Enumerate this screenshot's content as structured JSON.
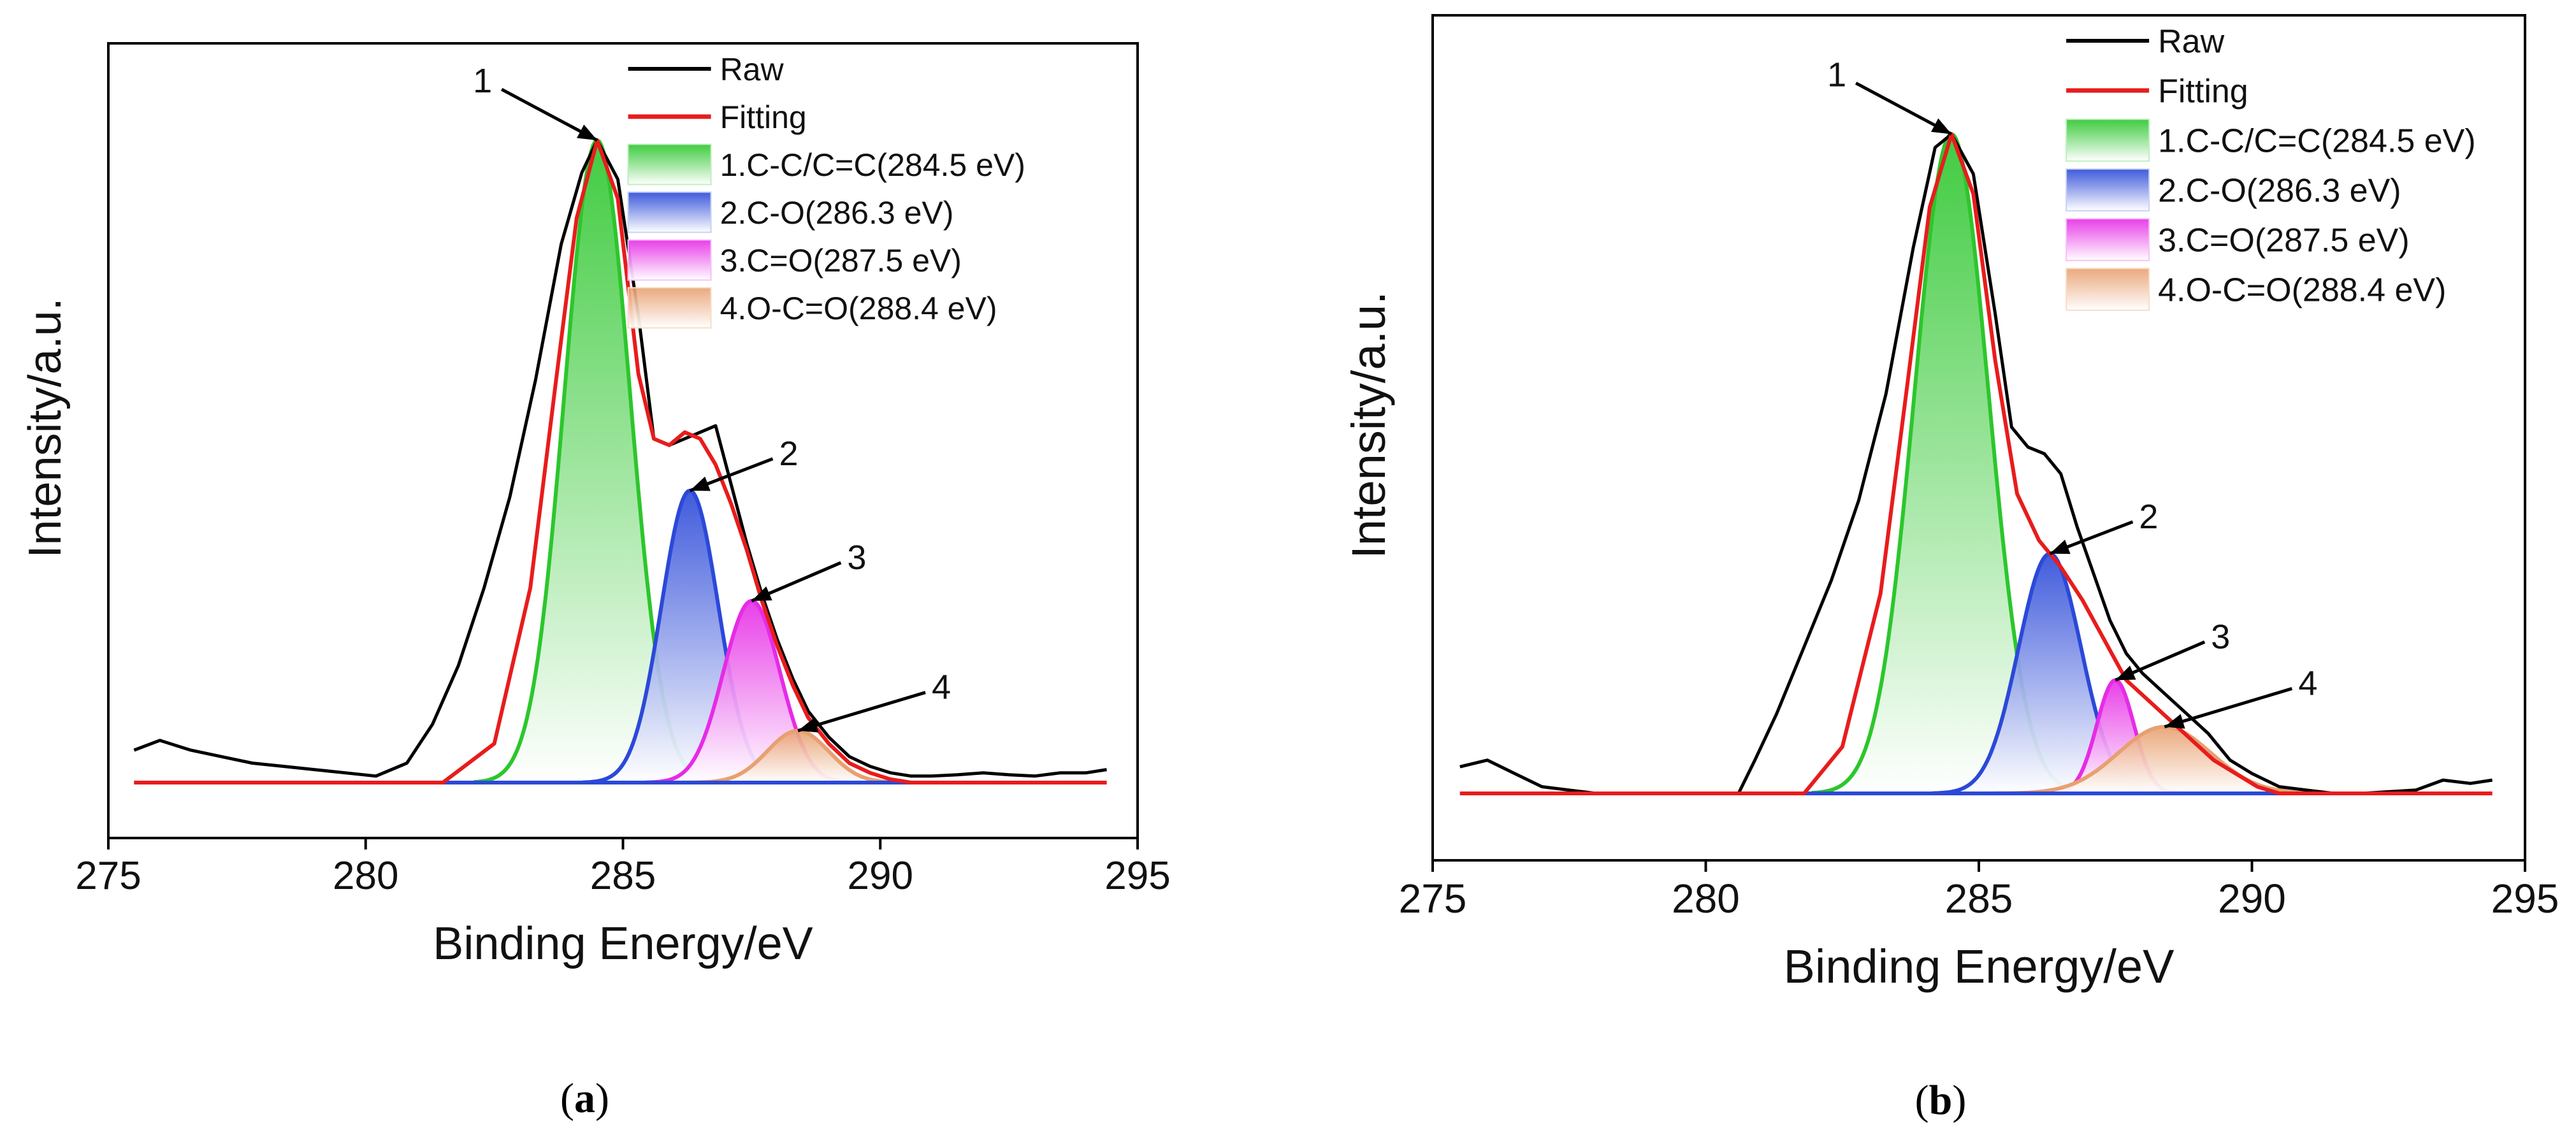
{
  "chart_data": [
    {
      "type": "line",
      "panel_label": "(a)",
      "panel_letter": "a",
      "xlabel": "Binding Energy/eV",
      "ylabel": "Intensity/a.u.",
      "xlim": [
        275,
        295
      ],
      "ylim": [
        0,
        1
      ],
      "xticks": [
        275,
        280,
        285,
        290,
        295
      ],
      "raw": {
        "x": [
          275.5,
          276.0,
          276.6,
          277.2,
          277.8,
          278.4,
          279.0,
          279.6,
          280.2,
          280.8,
          281.3,
          281.8,
          282.3,
          282.8,
          283.3,
          283.8,
          284.2,
          284.5,
          284.9,
          285.3,
          285.6,
          285.9,
          286.2,
          286.5,
          286.8,
          287.1,
          287.4,
          287.7,
          288.0,
          288.3,
          288.6,
          289.0,
          289.4,
          289.8,
          290.2,
          290.6,
          291.0,
          291.5,
          292.0,
          292.5,
          293.0,
          293.5,
          294.0,
          294.4
        ],
        "y": [
          0.05,
          0.065,
          0.05,
          0.04,
          0.03,
          0.025,
          0.02,
          0.015,
          0.01,
          0.03,
          0.09,
          0.18,
          0.3,
          0.44,
          0.62,
          0.83,
          0.94,
          0.99,
          0.93,
          0.72,
          0.53,
          0.52,
          0.53,
          0.54,
          0.55,
          0.46,
          0.37,
          0.29,
          0.22,
          0.16,
          0.11,
          0.07,
          0.04,
          0.025,
          0.015,
          0.01,
          0.01,
          0.012,
          0.015,
          0.012,
          0.01,
          0.015,
          0.015,
          0.02
        ]
      },
      "fitting": {
        "x": [
          275.5,
          279.0,
          281.5,
          282.5,
          283.2,
          283.7,
          284.1,
          284.5,
          284.9,
          285.3,
          285.6,
          285.9,
          286.2,
          286.5,
          286.8,
          287.1,
          287.4,
          287.7,
          288.0,
          288.3,
          288.6,
          289.0,
          289.4,
          289.8,
          290.2,
          290.6,
          291.0,
          294.4
        ],
        "y": [
          0.0,
          0.0,
          0.0,
          0.06,
          0.3,
          0.62,
          0.87,
          0.99,
          0.9,
          0.63,
          0.53,
          0.52,
          0.54,
          0.53,
          0.49,
          0.43,
          0.36,
          0.28,
          0.21,
          0.15,
          0.1,
          0.06,
          0.03,
          0.015,
          0.005,
          0.0,
          0.0,
          0.0
        ]
      },
      "components": [
        {
          "name": "1.C-C/C=C(284.5 eV)",
          "center": 284.5,
          "height": 0.99,
          "fwhm": 1.5,
          "color": "#2cc62c",
          "fill": "#bdf0bd"
        },
        {
          "name": "2.C-O(286.3 eV)",
          "center": 286.3,
          "height": 0.45,
          "fwhm": 1.3,
          "color": "#2b49d8",
          "fill": "#c9d1f5"
        },
        {
          "name": "3.C=O(287.5 eV)",
          "center": 287.5,
          "height": 0.28,
          "fwhm": 1.3,
          "color": "#e62be6",
          "fill": "#f7c1f7"
        },
        {
          "name": "4.O-C=O(288.4 eV)",
          "center": 288.4,
          "height": 0.08,
          "fwhm": 1.4,
          "color": "#e8a070",
          "fill": "#f9dcc6"
        }
      ],
      "annotations": [
        {
          "label": "1",
          "x": 284.5,
          "y": 0.99
        },
        {
          "label": "2",
          "x": 286.3,
          "y": 0.45
        },
        {
          "label": "3",
          "x": 287.5,
          "y": 0.28
        },
        {
          "label": "4",
          "x": 288.4,
          "y": 0.08
        }
      ],
      "legend": {
        "position": "top-right",
        "entries": [
          "Raw",
          "Fitting",
          "1.C-C/C=C(284.5 eV)",
          "2.C-O(286.3 eV)",
          "3.C=O(287.5 eV)",
          "4.O-C=O(288.4 eV)"
        ]
      },
      "raw_color": "#000000",
      "fitting_color": "#e81c1c",
      "baseline_color": "#2b49d8"
    },
    {
      "type": "line",
      "panel_label": "(b)",
      "panel_letter": "b",
      "xlabel": "Binding Energy/eV",
      "ylabel": "Intensity/a.u.",
      "xlim": [
        275,
        295
      ],
      "ylim": [
        0,
        1
      ],
      "xticks": [
        275,
        280,
        285,
        290,
        295
      ],
      "raw": {
        "x": [
          275.5,
          276.0,
          276.5,
          277.0,
          277.5,
          278.0,
          279.0,
          280.0,
          280.6,
          280.9,
          281.3,
          281.8,
          282.3,
          282.8,
          283.3,
          283.8,
          284.2,
          284.5,
          284.9,
          285.3,
          285.6,
          285.9,
          286.2,
          286.5,
          286.8,
          287.1,
          287.4,
          287.7,
          288.0,
          288.4,
          288.8,
          289.2,
          289.6,
          290.0,
          290.5,
          291.0,
          291.5,
          292.0,
          293.0,
          293.5,
          294.0,
          294.4
        ],
        "y": [
          0.04,
          0.05,
          0.03,
          0.01,
          0.005,
          0.0,
          0.0,
          0.0,
          0.0,
          0.05,
          0.12,
          0.22,
          0.32,
          0.44,
          0.6,
          0.82,
          0.97,
          0.99,
          0.93,
          0.72,
          0.55,
          0.52,
          0.51,
          0.48,
          0.4,
          0.33,
          0.26,
          0.21,
          0.18,
          0.15,
          0.12,
          0.09,
          0.05,
          0.03,
          0.01,
          0.005,
          0.0,
          0.0,
          0.005,
          0.02,
          0.015,
          0.02
        ]
      },
      "fitting": {
        "x": [
          275.5,
          280.0,
          281.8,
          282.5,
          283.2,
          283.7,
          284.1,
          284.5,
          284.9,
          285.3,
          285.7,
          286.1,
          286.5,
          286.9,
          287.3,
          287.7,
          288.1,
          288.5,
          288.9,
          289.3,
          289.7,
          290.1,
          290.5,
          294.4
        ],
        "y": [
          0.0,
          0.0,
          0.0,
          0.07,
          0.3,
          0.62,
          0.88,
          0.99,
          0.9,
          0.65,
          0.45,
          0.38,
          0.34,
          0.29,
          0.23,
          0.17,
          0.14,
          0.11,
          0.08,
          0.05,
          0.03,
          0.01,
          0.0,
          0.0
        ]
      },
      "components": [
        {
          "name": "1.C-C/C=C(284.5 eV)",
          "center": 284.5,
          "height": 0.99,
          "fwhm": 1.6,
          "color": "#2cc62c",
          "fill": "#bdf0bd"
        },
        {
          "name": "2.C-O(286.3 eV)",
          "center": 286.3,
          "height": 0.36,
          "fwhm": 1.35,
          "color": "#2b49d8",
          "fill": "#c9d1f5"
        },
        {
          "name": "3.C=O(287.5 eV)",
          "center": 287.5,
          "height": 0.17,
          "fwhm": 0.8,
          "color": "#e62be6",
          "fill": "#f7c1f7"
        },
        {
          "name": "4.O-C=O(288.4 eV)",
          "center": 288.4,
          "height": 0.1,
          "fwhm": 2.0,
          "color": "#e8a070",
          "fill": "#f9dcc6"
        }
      ],
      "annotations": [
        {
          "label": "1",
          "x": 284.5,
          "y": 0.99
        },
        {
          "label": "2",
          "x": 286.3,
          "y": 0.36
        },
        {
          "label": "3",
          "x": 287.5,
          "y": 0.17
        },
        {
          "label": "4",
          "x": 288.4,
          "y": 0.1
        }
      ],
      "legend": {
        "position": "top-right",
        "entries": [
          "Raw",
          "Fitting",
          "1.C-C/C=C(284.5 eV)",
          "2.C-O(286.3 eV)",
          "3.C=O(287.5 eV)",
          "4.O-C=O(288.4 eV)"
        ]
      },
      "raw_color": "#000000",
      "fitting_color": "#e81c1c",
      "baseline_color": "#2b49d8"
    }
  ]
}
